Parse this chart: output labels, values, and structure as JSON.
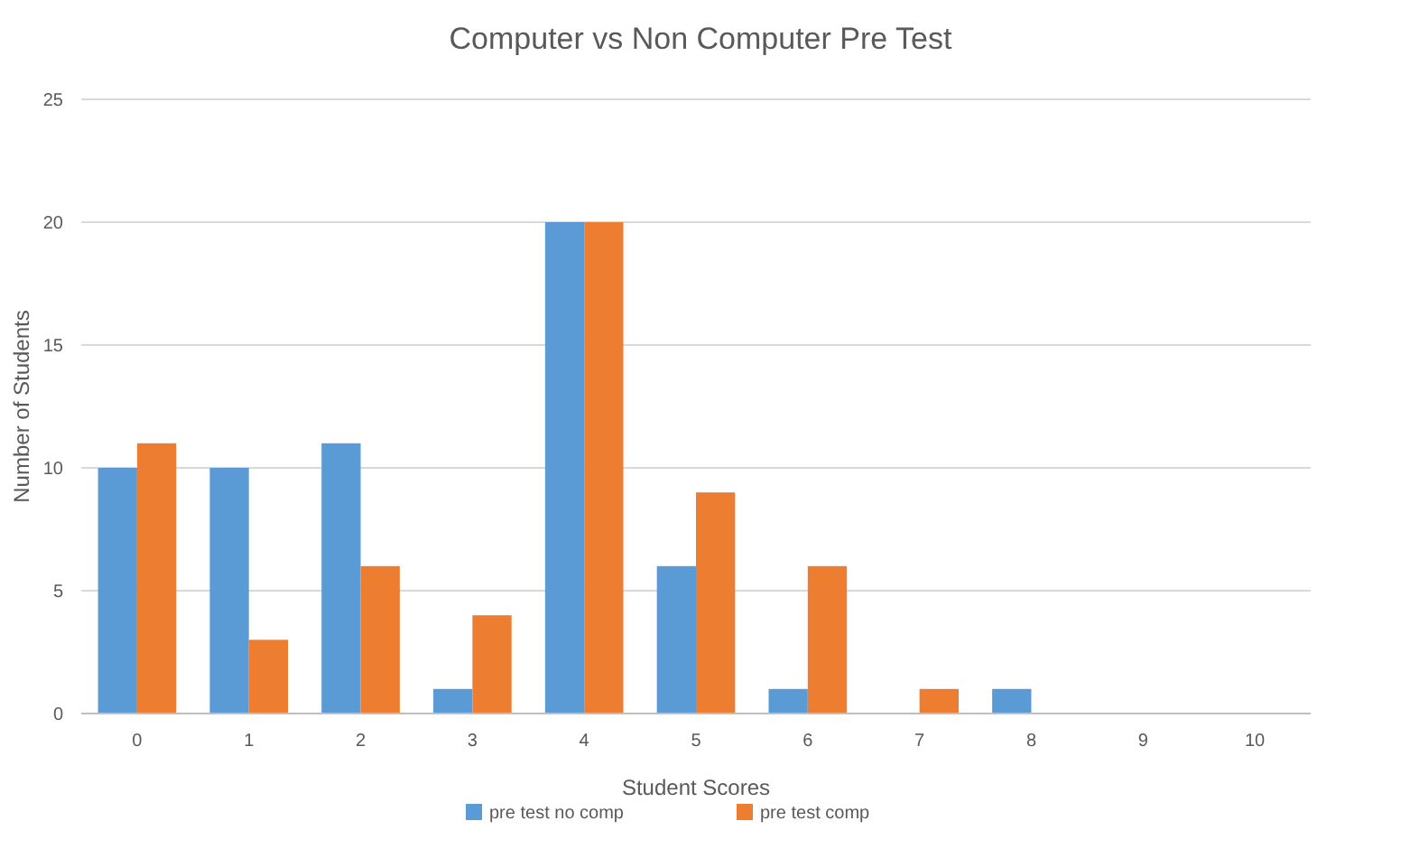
{
  "chart_data": {
    "type": "bar",
    "title": "Computer vs Non Computer Pre Test",
    "xlabel": "Student Scores",
    "ylabel": "Number of Students",
    "categories": [
      "0",
      "1",
      "2",
      "3",
      "4",
      "5",
      "6",
      "7",
      "8",
      "9",
      "10"
    ],
    "series": [
      {
        "name": "pre test no comp",
        "color": "#5b9bd5",
        "values": [
          10,
          10,
          11,
          1,
          20,
          6,
          1,
          0,
          1,
          0,
          0
        ]
      },
      {
        "name": "pre test comp",
        "color": "#ed7d31",
        "values": [
          11,
          3,
          6,
          4,
          20,
          9,
          6,
          1,
          0,
          0,
          0
        ]
      }
    ],
    "ylim": [
      0,
      25
    ],
    "yticks": [
      0,
      5,
      10,
      15,
      20,
      25
    ],
    "grid": "y",
    "legend": "bottom"
  }
}
